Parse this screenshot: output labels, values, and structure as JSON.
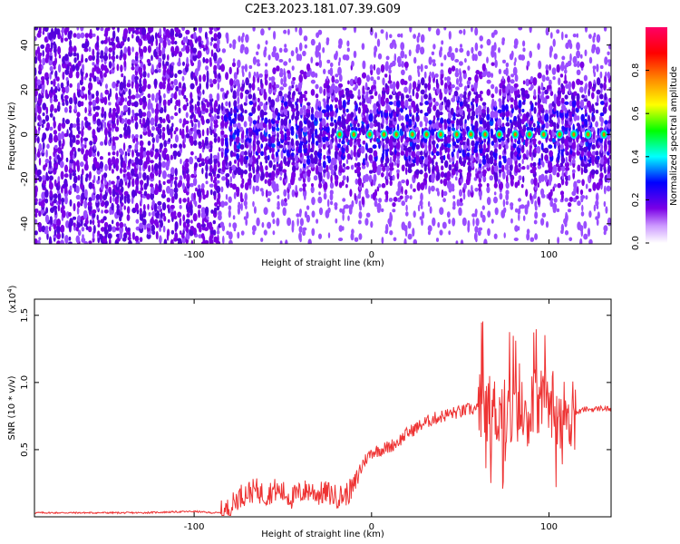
{
  "figure_title": "C2E3.2023.181.07.39.G09",
  "chart_data": [
    {
      "type": "heatmap",
      "title": "C2E3.2023.181.07.39.G09",
      "xlabel": "Height of straight line (km)",
      "ylabel": "Frequency (Hz)",
      "xlim": [
        -190,
        135
      ],
      "ylim": [
        -49,
        48
      ],
      "x_ticks": [
        -100,
        0,
        100
      ],
      "y_ticks": [
        -40,
        -20,
        0,
        20,
        40
      ],
      "colorbar": {
        "label": "Normalized spectral amplitude",
        "range": [
          0.0,
          1.0
        ],
        "ticks": [
          "0.0",
          "0.2",
          "0.4",
          "0.6",
          "0.8"
        ],
        "tick_values": [
          0.0,
          0.2,
          0.4,
          0.6,
          0.8
        ],
        "colors": [
          "#ffffff",
          "#cc99ff",
          "#7a00e6",
          "#0000ff",
          "#00ffff",
          "#00ff00",
          "#ffff00",
          "#ff8800",
          "#ff0000",
          "#ff0066"
        ]
      },
      "signal": {
        "band_frequency": 0,
        "peak_heights": [
          -18,
          -10,
          -1,
          7,
          14,
          23,
          31,
          39,
          48,
          56,
          64,
          72,
          81,
          89,
          97,
          106,
          114,
          122,
          131
        ],
        "noise_cutoff_height": -86,
        "grid": false
      }
    },
    {
      "type": "line",
      "xlabel": "Height of straight line (km)",
      "ylabel": "SNR (10 * v/v)",
      "y_multiplier": "(x10",
      "y_multiplier_exp": "4",
      "y_multiplier_close": ")",
      "xlim": [
        -190,
        135
      ],
      "ylim": [
        0,
        1.62
      ],
      "x_ticks": [
        -100,
        0,
        100
      ],
      "y_ticks": [
        "0.5",
        "1.0",
        "1.5"
      ],
      "y_tick_values": [
        0.5,
        1.0,
        1.5
      ],
      "series": [
        {
          "color": "#ee3333",
          "x": [
            -190,
            -160,
            -130,
            -100,
            -90,
            -85,
            -80,
            -75,
            -70,
            -65,
            -60,
            -55,
            -50,
            -45,
            -40,
            -35,
            -30,
            -25,
            -20,
            -15,
            -10,
            -5,
            0,
            5,
            10,
            15,
            20,
            25,
            30,
            35,
            40,
            45,
            50,
            55,
            60,
            65,
            70,
            75,
            80,
            85,
            90,
            95,
            100,
            105,
            110,
            115,
            120,
            125,
            130,
            135
          ],
          "y": [
            0.03,
            0.03,
            0.03,
            0.04,
            0.03,
            0.03,
            0.06,
            0.15,
            0.18,
            0.2,
            0.16,
            0.2,
            0.18,
            0.14,
            0.18,
            0.2,
            0.17,
            0.18,
            0.15,
            0.16,
            0.22,
            0.4,
            0.48,
            0.5,
            0.52,
            0.56,
            0.62,
            0.66,
            0.7,
            0.73,
            0.75,
            0.77,
            0.78,
            0.8,
            0.8,
            0.79,
            0.78,
            0.8,
            0.78,
            0.8,
            0.8,
            0.85,
            0.9,
            0.8,
            0.75,
            0.77,
            0.8,
            0.8,
            0.81,
            0.8
          ]
        }
      ]
    }
  ]
}
